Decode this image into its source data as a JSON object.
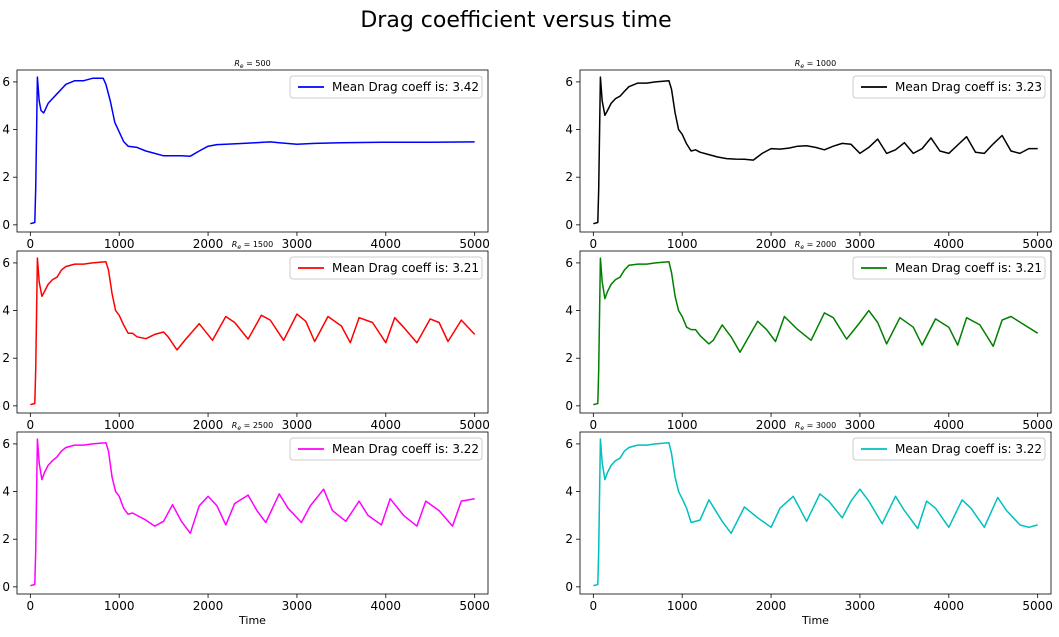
{
  "figure_title": "Drag coefficient versus time",
  "chart_data": [
    {
      "type": "line",
      "title": "R_e = 500",
      "subscript": "e",
      "re_value": "500",
      "xlabel": "",
      "ylabel": "",
      "xlim": [
        -150,
        5150
      ],
      "ylim": [
        -0.3,
        6.5
      ],
      "xticks": [
        0,
        1000,
        2000,
        3000,
        4000,
        5000
      ],
      "yticks": [
        0,
        2,
        4,
        6
      ],
      "legend_position": "top-right",
      "series": [
        {
          "name": "Mean Drag coeff is: 3.42",
          "color": "#0000ff",
          "x": [
            0,
            50,
            60,
            80,
            100,
            120,
            150,
            200,
            250,
            300,
            350,
            400,
            500,
            600,
            700,
            820,
            850,
            900,
            950,
            1000,
            1050,
            1100,
            1200,
            1300,
            1400,
            1500,
            1600,
            1700,
            1800,
            1900,
            2000,
            2100,
            2200,
            2400,
            2600,
            2700,
            2800,
            3000,
            3200,
            3500,
            4000,
            4500,
            5000
          ],
          "y": [
            0.05,
            0.1,
            1.5,
            6.2,
            5.2,
            4.8,
            4.7,
            5.1,
            5.3,
            5.5,
            5.7,
            5.9,
            6.05,
            6.05,
            6.15,
            6.15,
            5.9,
            5.2,
            4.3,
            3.9,
            3.5,
            3.3,
            3.25,
            3.1,
            3.0,
            2.9,
            2.9,
            2.9,
            2.88,
            3.1,
            3.3,
            3.37,
            3.38,
            3.42,
            3.46,
            3.48,
            3.45,
            3.38,
            3.42,
            3.45,
            3.47,
            3.47,
            3.48
          ]
        }
      ]
    },
    {
      "type": "line",
      "title": "R_e = 1000",
      "subscript": "e",
      "re_value": "1000",
      "xlabel": "",
      "ylabel": "",
      "xlim": [
        -150,
        5150
      ],
      "ylim": [
        -0.3,
        6.5
      ],
      "xticks": [
        0,
        1000,
        2000,
        3000,
        4000,
        5000
      ],
      "yticks": [
        0,
        2,
        4,
        6
      ],
      "legend_position": "top-right",
      "series": [
        {
          "name": "Mean Drag coeff is: 3.23",
          "color": "#000000",
          "x": [
            0,
            50,
            60,
            80,
            100,
            130,
            160,
            200,
            250,
            300,
            350,
            400,
            500,
            600,
            700,
            850,
            880,
            920,
            960,
            1000,
            1050,
            1100,
            1150,
            1200,
            1300,
            1400,
            1500,
            1600,
            1700,
            1800,
            1900,
            2000,
            2100,
            2200,
            2300,
            2400,
            2500,
            2600,
            2700,
            2800,
            2900,
            3000,
            3100,
            3200,
            3300,
            3400,
            3500,
            3600,
            3700,
            3800,
            3900,
            4000,
            4100,
            4200,
            4300,
            4400,
            4500,
            4600,
            4700,
            4800,
            4900,
            5000
          ],
          "y": [
            0.05,
            0.1,
            1.5,
            6.2,
            5.2,
            4.6,
            4.8,
            5.1,
            5.3,
            5.4,
            5.6,
            5.8,
            5.95,
            5.95,
            6.0,
            6.05,
            5.7,
            4.7,
            4.0,
            3.8,
            3.4,
            3.1,
            3.15,
            3.05,
            2.95,
            2.85,
            2.78,
            2.76,
            2.75,
            2.72,
            3.0,
            3.2,
            3.18,
            3.22,
            3.3,
            3.32,
            3.25,
            3.15,
            3.3,
            3.42,
            3.38,
            3.0,
            3.25,
            3.6,
            3.0,
            3.15,
            3.45,
            3.0,
            3.2,
            3.65,
            3.1,
            3.0,
            3.35,
            3.7,
            3.05,
            3.0,
            3.4,
            3.75,
            3.1,
            3.0,
            3.2,
            3.2
          ]
        }
      ]
    },
    {
      "type": "line",
      "title": "R_e = 1500",
      "subscript": "e",
      "re_value": "1500",
      "xlabel": "",
      "ylabel": "",
      "xlim": [
        -150,
        5150
      ],
      "ylim": [
        -0.3,
        6.5
      ],
      "xticks": [
        0,
        1000,
        2000,
        3000,
        4000,
        5000
      ],
      "yticks": [
        0,
        2,
        4,
        6
      ],
      "legend_position": "top-right",
      "series": [
        {
          "name": "Mean Drag coeff is: 3.21",
          "color": "#ff0000",
          "x": [
            0,
            50,
            60,
            80,
            100,
            130,
            160,
            200,
            250,
            300,
            350,
            400,
            500,
            600,
            700,
            850,
            880,
            920,
            960,
            1000,
            1050,
            1100,
            1150,
            1200,
            1300,
            1400,
            1500,
            1550,
            1650,
            1750,
            1900,
            2050,
            2200,
            2300,
            2450,
            2600,
            2700,
            2850,
            3000,
            3100,
            3200,
            3350,
            3500,
            3600,
            3700,
            3850,
            4000,
            4100,
            4200,
            4350,
            4500,
            4600,
            4700,
            4850,
            5000
          ],
          "y": [
            0.05,
            0.1,
            1.5,
            6.2,
            5.2,
            4.6,
            4.8,
            5.1,
            5.3,
            5.4,
            5.7,
            5.85,
            5.95,
            5.95,
            6.0,
            6.05,
            5.7,
            4.7,
            4.0,
            3.8,
            3.4,
            3.05,
            3.05,
            2.9,
            2.82,
            3.0,
            3.1,
            2.9,
            2.35,
            2.8,
            3.45,
            2.75,
            3.75,
            3.5,
            2.8,
            3.8,
            3.6,
            2.75,
            3.85,
            3.55,
            2.7,
            3.75,
            3.35,
            2.65,
            3.7,
            3.5,
            2.65,
            3.7,
            3.3,
            2.65,
            3.65,
            3.5,
            2.7,
            3.6,
            3.0
          ]
        }
      ]
    },
    {
      "type": "line",
      "title": "R_e = 2000",
      "subscript": "e",
      "re_value": "2000",
      "xlabel": "",
      "ylabel": "",
      "xlim": [
        -150,
        5150
      ],
      "ylim": [
        -0.3,
        6.5
      ],
      "xticks": [
        0,
        1000,
        2000,
        3000,
        4000,
        5000
      ],
      "yticks": [
        0,
        2,
        4,
        6
      ],
      "legend_position": "top-right",
      "series": [
        {
          "name": "Mean Drag coeff is: 3.21",
          "color": "#008000",
          "x": [
            0,
            50,
            60,
            80,
            100,
            130,
            160,
            200,
            250,
            300,
            350,
            400,
            500,
            600,
            700,
            850,
            880,
            920,
            960,
            1000,
            1050,
            1100,
            1150,
            1200,
            1300,
            1350,
            1450,
            1550,
            1650,
            1750,
            1850,
            1950,
            2050,
            2150,
            2300,
            2450,
            2600,
            2700,
            2850,
            3000,
            3100,
            3200,
            3300,
            3450,
            3600,
            3700,
            3850,
            4000,
            4100,
            4200,
            4350,
            4500,
            4600,
            4700,
            4850,
            5000
          ],
          "y": [
            0.05,
            0.1,
            1.5,
            6.2,
            5.2,
            4.5,
            4.8,
            5.1,
            5.3,
            5.4,
            5.7,
            5.9,
            5.95,
            5.95,
            6.0,
            6.05,
            5.6,
            4.6,
            4.0,
            3.75,
            3.3,
            3.2,
            3.2,
            2.95,
            2.6,
            2.75,
            3.4,
            2.9,
            2.25,
            2.9,
            3.55,
            3.2,
            2.7,
            3.75,
            3.2,
            2.75,
            3.9,
            3.7,
            2.8,
            3.5,
            4.0,
            3.5,
            2.6,
            3.7,
            3.3,
            2.55,
            3.65,
            3.3,
            2.55,
            3.7,
            3.4,
            2.5,
            3.6,
            3.75,
            3.4,
            3.05
          ]
        }
      ]
    },
    {
      "type": "line",
      "title": "R_e = 2500",
      "subscript": "e",
      "re_value": "2500",
      "xlabel": "Time",
      "ylabel": "",
      "xlim": [
        -150,
        5150
      ],
      "ylim": [
        -0.3,
        6.5
      ],
      "xticks": [
        0,
        1000,
        2000,
        3000,
        4000,
        5000
      ],
      "yticks": [
        0,
        2,
        4,
        6
      ],
      "legend_position": "top-right",
      "series": [
        {
          "name": "Mean Drag coeff is: 3.22",
          "color": "#ff00ff",
          "x": [
            0,
            50,
            60,
            80,
            100,
            130,
            160,
            200,
            250,
            300,
            350,
            400,
            500,
            600,
            700,
            850,
            880,
            920,
            960,
            1000,
            1050,
            1100,
            1150,
            1200,
            1300,
            1400,
            1500,
            1600,
            1700,
            1800,
            1900,
            2000,
            2100,
            2200,
            2300,
            2450,
            2550,
            2650,
            2800,
            2900,
            3050,
            3150,
            3300,
            3400,
            3550,
            3700,
            3800,
            3950,
            4050,
            4200,
            4350,
            4450,
            4600,
            4750,
            4850,
            5000
          ],
          "y": [
            0.05,
            0.1,
            1.5,
            6.2,
            5.2,
            4.5,
            4.8,
            5.1,
            5.3,
            5.45,
            5.7,
            5.85,
            5.95,
            5.95,
            6.0,
            6.05,
            5.7,
            4.6,
            4.0,
            3.8,
            3.3,
            3.05,
            3.1,
            3.0,
            2.8,
            2.55,
            2.75,
            3.45,
            2.75,
            2.25,
            3.4,
            3.8,
            3.4,
            2.6,
            3.5,
            3.85,
            3.2,
            2.7,
            3.9,
            3.3,
            2.7,
            3.4,
            4.1,
            3.2,
            2.75,
            3.6,
            3.0,
            2.6,
            3.7,
            3.0,
            2.55,
            3.6,
            3.2,
            2.55,
            3.6,
            3.7
          ]
        }
      ]
    },
    {
      "type": "line",
      "title": "R_e = 3000",
      "subscript": "e",
      "re_value": "3000",
      "xlabel": "Time",
      "ylabel": "",
      "xlim": [
        -150,
        5150
      ],
      "ylim": [
        -0.3,
        6.5
      ],
      "xticks": [
        0,
        1000,
        2000,
        3000,
        4000,
        5000
      ],
      "yticks": [
        0,
        2,
        4,
        6
      ],
      "legend_position": "top-right",
      "series": [
        {
          "name": "Mean Drag coeff is: 3.22",
          "color": "#00bfbf",
          "x": [
            0,
            50,
            60,
            80,
            100,
            130,
            160,
            200,
            250,
            300,
            350,
            400,
            500,
            600,
            700,
            850,
            880,
            920,
            960,
            1000,
            1050,
            1100,
            1200,
            1300,
            1450,
            1550,
            1700,
            1850,
            2000,
            2100,
            2250,
            2400,
            2550,
            2650,
            2800,
            2900,
            3000,
            3100,
            3250,
            3400,
            3500,
            3650,
            3750,
            3850,
            4000,
            4150,
            4250,
            4400,
            4550,
            4650,
            4800,
            4900,
            5000
          ],
          "y": [
            0.05,
            0.1,
            1.5,
            6.2,
            5.2,
            4.5,
            4.8,
            5.1,
            5.3,
            5.4,
            5.7,
            5.85,
            5.95,
            5.95,
            6.0,
            6.05,
            5.6,
            4.6,
            4.0,
            3.7,
            3.3,
            2.7,
            2.8,
            3.65,
            2.75,
            2.25,
            3.35,
            2.9,
            2.5,
            3.3,
            3.8,
            2.75,
            3.9,
            3.6,
            2.9,
            3.6,
            4.1,
            3.6,
            2.65,
            3.8,
            3.2,
            2.45,
            3.6,
            3.3,
            2.5,
            3.65,
            3.3,
            2.5,
            3.75,
            3.2,
            2.6,
            2.5,
            2.6
          ]
        }
      ]
    }
  ]
}
